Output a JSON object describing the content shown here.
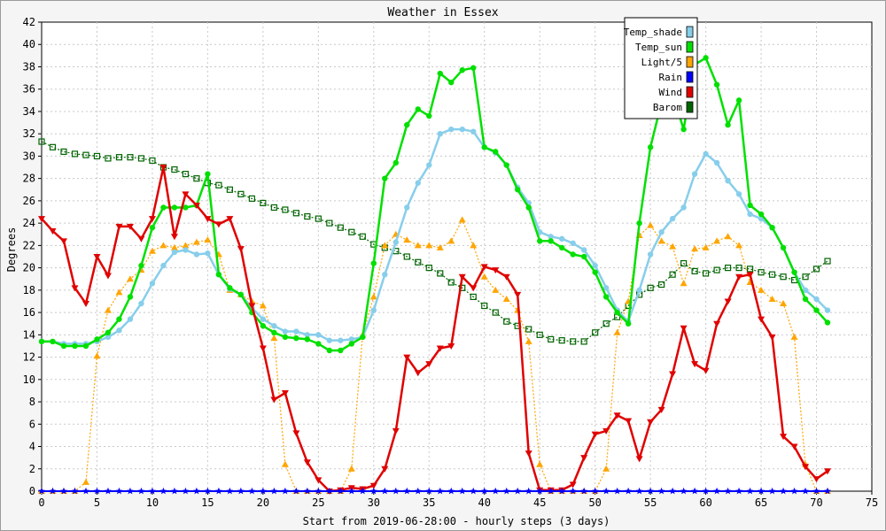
{
  "chart_data": {
    "type": "line",
    "title": "Weather in Essex",
    "xlabel": "Start from 2019-06-28:00 - hourly steps (3 days)",
    "ylabel": "Degrees",
    "xlim": [
      0,
      75
    ],
    "ylim": [
      0,
      42
    ],
    "x_ticks": [
      0,
      5,
      10,
      15,
      20,
      25,
      30,
      35,
      40,
      45,
      50,
      55,
      60,
      65,
      70,
      75
    ],
    "y_ticks": [
      0,
      2,
      4,
      6,
      8,
      10,
      12,
      14,
      16,
      18,
      20,
      22,
      24,
      26,
      28,
      30,
      32,
      34,
      36,
      38,
      40,
      42
    ],
    "grid": true,
    "legend_position": "top-right",
    "series": [
      {
        "name": "Temp_shade",
        "color": "#87ceeb",
        "marker": "circle",
        "values": [
          13.4,
          13.4,
          13.2,
          13.2,
          13.2,
          13.4,
          13.8,
          14.4,
          15.4,
          16.8,
          18.6,
          20.2,
          21.4,
          21.6,
          21.2,
          21.3,
          19.4,
          18.1,
          17.6,
          16.4,
          15.4,
          14.8,
          14.3,
          14.3,
          14.0,
          14.0,
          13.5,
          13.5,
          13.6,
          13.8,
          16.2,
          19.4,
          22.3,
          25.4,
          27.6,
          29.2,
          32.0,
          32.4,
          32.4,
          32.2,
          30.8,
          30.3,
          29.2,
          27.2,
          25.8,
          23.2,
          22.8,
          22.6,
          22.2,
          21.6,
          20.2,
          18.2,
          16.2,
          15.2,
          18.0,
          21.2,
          23.2,
          24.4,
          25.4,
          28.4,
          30.2,
          29.4,
          27.8,
          26.6,
          24.8,
          24.4,
          23.6,
          21.8,
          19.6,
          18.0,
          17.2,
          16.2
        ]
      },
      {
        "name": "Temp_sun",
        "color": "#00e000",
        "marker": "circle",
        "values": [
          13.4,
          13.4,
          13.0,
          13.0,
          13.0,
          13.6,
          14.2,
          15.4,
          17.4,
          20.2,
          23.6,
          25.4,
          25.4,
          25.4,
          25.6,
          28.4,
          19.4,
          18.2,
          17.6,
          16.0,
          14.8,
          14.2,
          13.8,
          13.7,
          13.6,
          13.2,
          12.6,
          12.6,
          13.2,
          13.8,
          20.4,
          28.0,
          29.4,
          32.8,
          34.2,
          33.6,
          37.4,
          36.6,
          37.7,
          37.9,
          30.8,
          30.4,
          29.2,
          27.0,
          25.4,
          22.4,
          22.4,
          21.8,
          21.2,
          21.0,
          19.6,
          17.4,
          16.0,
          15.0,
          24.0,
          30.8,
          34.8,
          35.6,
          32.4,
          38.2,
          38.8,
          36.4,
          32.8,
          35.0,
          25.6,
          24.8,
          23.6,
          21.8,
          19.6,
          17.2,
          16.2,
          15.1
        ]
      },
      {
        "name": "Light/5",
        "color": "#ffa500",
        "marker": "triangle-up",
        "values": [
          0,
          0,
          0,
          0,
          0.8,
          12.1,
          16.2,
          17.8,
          19.0,
          19.8,
          21.5,
          22.0,
          21.8,
          22.0,
          22.3,
          22.5,
          21.2,
          18.0,
          17.6,
          17.0,
          16.6,
          13.7,
          2.4,
          0,
          0,
          0,
          0,
          0,
          2.0,
          14.0,
          17.4,
          22.0,
          23.0,
          22.5,
          22.0,
          22.0,
          21.8,
          22.4,
          24.3,
          22.0,
          19.2,
          18.0,
          17.2,
          16.2,
          13.4,
          2.4,
          0,
          0,
          0,
          0,
          0,
          2.0,
          14.2,
          17.0,
          22.9,
          23.8,
          22.4,
          21.9,
          18.6,
          21.7,
          21.8,
          22.4,
          22.8,
          22.0,
          18.7,
          18.0,
          17.2,
          16.8,
          13.8,
          2.4,
          0,
          0
        ]
      },
      {
        "name": "Rain",
        "color": "#0000ff",
        "marker": "star",
        "values": [
          0,
          0,
          0,
          0,
          0,
          0,
          0,
          0,
          0,
          0,
          0,
          0,
          0,
          0,
          0,
          0,
          0,
          0,
          0,
          0,
          0,
          0,
          0,
          0,
          0,
          0,
          0,
          0,
          0,
          0,
          0,
          0,
          0,
          0,
          0,
          0,
          0,
          0,
          0,
          0,
          0,
          0,
          0,
          0,
          0,
          0,
          0,
          0,
          0,
          0,
          0,
          0,
          0,
          0,
          0,
          0,
          0,
          0,
          0,
          0,
          0,
          0,
          0,
          0,
          0,
          0,
          0,
          0,
          0,
          0,
          0,
          0
        ]
      },
      {
        "name": "Wind",
        "color": "#e00000",
        "marker": "triangle-down",
        "values": [
          24.4,
          23.3,
          22.4,
          18.2,
          16.8,
          21.0,
          19.3,
          23.7,
          23.7,
          22.6,
          24.4,
          29.0,
          22.8,
          26.6,
          25.6,
          24.4,
          23.9,
          24.4,
          21.7,
          16.6,
          12.8,
          8.2,
          8.8,
          5.2,
          2.6,
          1.0,
          0,
          0.1,
          0.3,
          0.2,
          0.5,
          2.0,
          5.4,
          12.0,
          10.6,
          11.4,
          12.8,
          13.0,
          19.2,
          18.2,
          20.1,
          19.8,
          19.2,
          17.6,
          3.4,
          0.1,
          0.1,
          0.1,
          0.6,
          3.0,
          5.1,
          5.4,
          6.8,
          6.3,
          2.9,
          6.2,
          7.3,
          10.5,
          14.6,
          11.4,
          10.8,
          15.0,
          17.0,
          19.2,
          19.4,
          15.4,
          13.8,
          4.9,
          4.0,
          2.2,
          1.1,
          1.8
        ]
      },
      {
        "name": "Barom",
        "color": "#006400",
        "marker": "square",
        "values": [
          31.3,
          30.8,
          30.4,
          30.2,
          30.1,
          30.0,
          29.8,
          29.9,
          29.9,
          29.8,
          29.6,
          29.0,
          28.8,
          28.4,
          28.0,
          27.6,
          27.4,
          27.0,
          26.6,
          26.2,
          25.8,
          25.4,
          25.2,
          24.9,
          24.6,
          24.4,
          24.0,
          23.6,
          23.2,
          22.8,
          22.1,
          21.8,
          21.5,
          21.0,
          20.5,
          20.0,
          19.5,
          18.7,
          18.2,
          17.4,
          16.6,
          16.0,
          15.2,
          14.8,
          14.5,
          14.0,
          13.6,
          13.5,
          13.4,
          13.4,
          14.2,
          15.0,
          15.6,
          16.6,
          17.6,
          18.2,
          18.5,
          19.4,
          20.4,
          19.7,
          19.5,
          19.8,
          20.0,
          20.0,
          19.9,
          19.6,
          19.4,
          19.2,
          18.9,
          19.2,
          19.9,
          20.6
        ]
      }
    ]
  }
}
